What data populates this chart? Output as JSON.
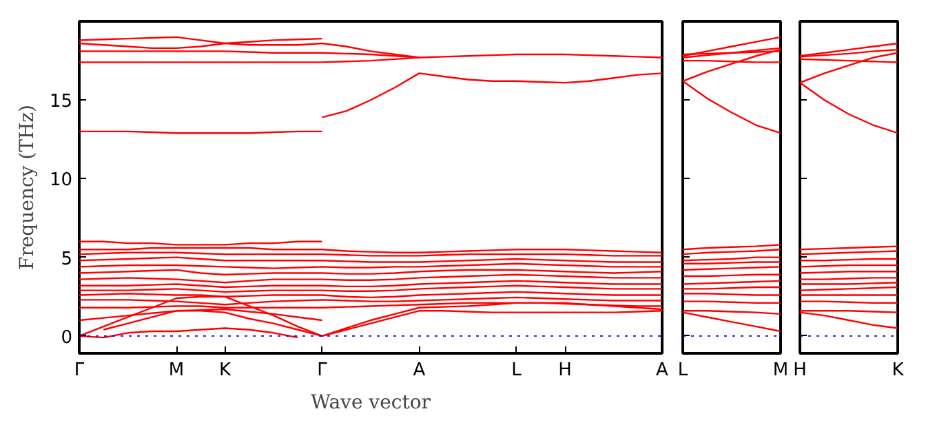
{
  "chart_data": [
    {
      "type": "line",
      "xlabel": "Wave vector",
      "ylabel": "Frequency (THz)",
      "ylim": [
        -1.1,
        20.0
      ],
      "yticks": [
        0,
        5,
        10,
        15
      ],
      "categories": [
        "Γ",
        null,
        null,
        null,
        "M",
        null,
        "K",
        null,
        null,
        null,
        "Γ",
        null,
        null,
        null,
        "A",
        null,
        null,
        null,
        "L",
        null,
        "H",
        null,
        null,
        null,
        "A"
      ],
      "grid": false,
      "line_style": "solid",
      "marker": "none",
      "ref_lines": [
        {
          "axis": "y",
          "value": 0,
          "color": "#0000ff",
          "line_style": "dotted"
        }
      ],
      "series": [
        {
          "color": "#ff0000",
          "values": [
            18.8,
            18.85,
            18.9,
            18.95,
            19.0,
            18.8,
            18.6,
            18.5,
            18.5,
            18.5,
            18.6,
            18.4,
            18.1,
            17.9,
            17.7,
            17.75,
            17.8,
            17.85,
            17.9,
            17.9,
            17.9,
            17.85,
            17.8,
            17.75,
            17.7
          ]
        },
        {
          "color": "#ff0000",
          "values": [
            18.6,
            18.5,
            18.4,
            18.3,
            18.3,
            18.4,
            18.6,
            18.7,
            18.8,
            18.85,
            18.9,
            null,
            null,
            null,
            null,
            null,
            null,
            null,
            null,
            null,
            null,
            null,
            null,
            null,
            null
          ]
        },
        {
          "color": "#ff0000",
          "values": [
            18.1,
            18.1,
            18.1,
            18.1,
            18.1,
            18.1,
            18.1,
            18.05,
            18.0,
            18.0,
            18.0,
            17.95,
            17.9,
            17.8,
            17.7,
            null,
            null,
            null,
            null,
            null,
            null,
            null,
            null,
            null,
            null
          ]
        },
        {
          "color": "#ff0000",
          "values": [
            17.4,
            17.4,
            17.4,
            17.4,
            17.4,
            17.4,
            17.4,
            17.4,
            17.4,
            17.4,
            17.4,
            17.45,
            17.5,
            17.6,
            17.7,
            null,
            null,
            null,
            null,
            null,
            null,
            null,
            null,
            null,
            null
          ]
        },
        {
          "color": "#ff0000",
          "values": [
            13.0,
            13.0,
            13.0,
            12.95,
            12.9,
            12.9,
            12.9,
            12.9,
            12.95,
            13.0,
            13.0,
            null,
            null,
            null,
            null,
            null,
            null,
            null,
            null,
            null,
            null,
            null,
            null,
            null,
            null
          ]
        },
        {
          "color": "#ff0000",
          "values": [
            null,
            null,
            null,
            null,
            null,
            null,
            null,
            null,
            null,
            null,
            13.9,
            14.3,
            15.0,
            15.8,
            16.7,
            16.5,
            16.3,
            16.2,
            16.2,
            16.15,
            16.1,
            16.2,
            16.4,
            16.6,
            16.7
          ]
        },
        {
          "color": "#ff0000",
          "values": [
            6.0,
            6.0,
            5.9,
            5.9,
            5.8,
            5.8,
            5.8,
            5.9,
            5.9,
            6.0,
            6.0,
            null,
            null,
            null,
            null,
            null,
            null,
            null,
            null,
            null,
            null,
            null,
            null,
            null,
            null
          ]
        },
        {
          "color": "#ff0000",
          "values": [
            5.5,
            5.5,
            5.5,
            5.6,
            5.6,
            5.6,
            5.6,
            5.6,
            5.5,
            5.5,
            5.5,
            5.4,
            5.35,
            5.3,
            5.3,
            5.35,
            5.4,
            5.45,
            5.5,
            5.5,
            5.5,
            5.45,
            5.4,
            5.35,
            5.3
          ]
        },
        {
          "color": "#ff0000",
          "values": [
            5.2,
            5.25,
            5.3,
            5.3,
            5.3,
            5.25,
            5.2,
            5.2,
            5.2,
            5.2,
            5.2,
            5.15,
            5.1,
            5.1,
            5.1,
            5.15,
            5.2,
            5.2,
            5.2,
            5.2,
            5.2,
            5.15,
            5.1,
            5.1,
            5.1
          ]
        },
        {
          "color": "#ff0000",
          "values": [
            4.8,
            4.85,
            4.9,
            4.95,
            5.0,
            4.9,
            4.8,
            4.8,
            4.8,
            4.8,
            4.8,
            4.75,
            4.7,
            4.7,
            4.7,
            4.75,
            4.8,
            4.85,
            4.9,
            4.85,
            4.8,
            4.75,
            4.7,
            4.7,
            4.7
          ]
        },
        {
          "color": "#ff0000",
          "values": [
            4.4,
            4.45,
            4.5,
            4.5,
            4.5,
            4.45,
            4.4,
            4.35,
            4.3,
            4.35,
            4.4,
            4.35,
            4.35,
            4.4,
            4.4,
            4.45,
            4.5,
            4.55,
            4.6,
            4.55,
            4.5,
            4.45,
            4.4,
            4.4,
            4.4
          ]
        },
        {
          "color": "#ff0000",
          "values": [
            4.0,
            4.05,
            4.1,
            4.15,
            4.2,
            4.0,
            3.9,
            3.95,
            4.0,
            4.0,
            4.0,
            3.95,
            3.95,
            4.0,
            4.1,
            4.15,
            4.2,
            4.2,
            4.2,
            4.15,
            4.1,
            4.05,
            4.0,
            4.05,
            4.1
          ]
        },
        {
          "color": "#ff0000",
          "values": [
            3.6,
            3.65,
            3.7,
            3.65,
            3.6,
            3.5,
            3.4,
            3.5,
            3.6,
            3.6,
            3.6,
            3.55,
            3.55,
            3.6,
            3.7,
            3.75,
            3.8,
            3.85,
            3.9,
            3.85,
            3.8,
            3.75,
            3.7,
            3.7,
            3.7
          ]
        },
        {
          "color": "#ff0000",
          "values": [
            3.2,
            3.2,
            3.2,
            3.25,
            3.3,
            3.2,
            3.1,
            3.15,
            3.2,
            3.2,
            3.2,
            3.15,
            3.15,
            3.2,
            3.3,
            3.35,
            3.4,
            3.45,
            3.5,
            3.45,
            3.4,
            3.35,
            3.3,
            3.3,
            3.3
          ]
        },
        {
          "color": "#ff0000",
          "values": [
            2.9,
            2.9,
            2.9,
            2.95,
            3.0,
            2.9,
            2.8,
            2.85,
            2.9,
            2.9,
            2.9,
            2.85,
            2.85,
            2.9,
            3.0,
            3.05,
            3.1,
            3.15,
            3.2,
            3.15,
            3.1,
            3.05,
            3.0,
            3.0,
            3.0
          ]
        },
        {
          "color": "#ff0000",
          "values": [
            2.6,
            2.65,
            2.7,
            2.65,
            2.6,
            2.6,
            2.5,
            2.55,
            2.6,
            2.6,
            2.6,
            2.5,
            2.45,
            2.5,
            2.6,
            2.65,
            2.7,
            2.75,
            2.8,
            2.75,
            2.7,
            2.65,
            2.6,
            2.6,
            2.6
          ]
        },
        {
          "color": "#ff0000",
          "values": [
            2.3,
            2.3,
            2.3,
            2.25,
            2.2,
            2.1,
            2.0,
            2.1,
            2.2,
            2.25,
            2.3,
            2.25,
            2.2,
            2.2,
            2.25,
            2.3,
            2.35,
            2.4,
            2.45,
            2.4,
            2.35,
            2.3,
            2.25,
            2.25,
            2.25
          ]
        },
        {
          "color": "#ff0000",
          "values": [
            1.8,
            1.8,
            1.8,
            1.85,
            1.9,
            1.9,
            1.8,
            1.8,
            1.8,
            1.8,
            1.8,
            1.85,
            1.9,
            1.95,
            2.0,
            2.05,
            2.1,
            2.1,
            2.1,
            2.1,
            2.05,
            2.0,
            1.95,
            1.9,
            1.9
          ]
        },
        {
          "color": "#ff0000",
          "values": [
            1.0,
            1.15,
            1.3,
            1.45,
            1.6,
            1.65,
            1.7,
            1.55,
            1.4,
            1.2,
            1.0,
            null,
            null,
            null,
            null,
            null,
            null,
            null,
            null,
            null,
            null,
            null,
            null,
            null,
            null
          ]
        },
        {
          "color": "#ff0000",
          "values": [
            0.0,
            0.6,
            1.2,
            1.8,
            2.4,
            2.5,
            2.5,
            1.9,
            1.3,
            0.6,
            0.0,
            0.4,
            0.8,
            1.2,
            1.6,
            1.6,
            1.55,
            1.5,
            1.5,
            1.5,
            1.5,
            1.5,
            1.5,
            1.55,
            1.6
          ]
        },
        {
          "color": "#ff0000",
          "values": [
            null,
            0.4,
            0.8,
            1.2,
            1.6,
            1.6,
            1.5,
            1.1,
            0.8,
            0.4,
            0.0,
            0.5,
            1.0,
            1.4,
            1.8,
            1.85,
            1.9,
            2.0,
            2.1,
            2.1,
            2.1,
            2.0,
            1.9,
            1.8,
            1.7
          ]
        },
        {
          "color": "#ff0000",
          "values": [
            0.0,
            -0.1,
            0.2,
            0.3,
            0.3,
            0.4,
            0.5,
            0.4,
            0.2,
            -0.1,
            null,
            null,
            null,
            null,
            null,
            null,
            null,
            null,
            null,
            null,
            null,
            null,
            null,
            null,
            null
          ]
        }
      ]
    },
    {
      "type": "line",
      "ylim": [
        -1.1,
        20.0
      ],
      "yticks": [
        0,
        5,
        10,
        15
      ],
      "tick_labels": "x",
      "categories": [
        "L",
        null,
        null,
        null,
        "M"
      ],
      "grid": false,
      "line_style": "solid",
      "marker": "none",
      "ref_lines": [
        {
          "axis": "y",
          "value": 0,
          "color": "#0000ff",
          "line_style": "dotted"
        }
      ],
      "series": [
        {
          "color": "#ff0000",
          "values": [
            17.8,
            18.1,
            18.4,
            18.7,
            19.0
          ]
        },
        {
          "color": "#ff0000",
          "values": [
            17.7,
            17.85,
            18.0,
            18.15,
            18.3
          ]
        },
        {
          "color": "#ff0000",
          "values": [
            17.9,
            17.95,
            18.0,
            18.05,
            18.1
          ]
        },
        {
          "color": "#ff0000",
          "values": [
            17.5,
            17.5,
            17.45,
            17.4,
            17.4
          ]
        },
        {
          "color": "#ff0000",
          "values": [
            16.2,
            16.8,
            17.3,
            17.8,
            18.2
          ]
        },
        {
          "color": "#ff0000",
          "values": [
            16.2,
            15.1,
            14.2,
            13.4,
            12.9
          ]
        },
        {
          "color": "#ff0000",
          "values": [
            5.5,
            5.6,
            5.65,
            5.7,
            5.8
          ]
        },
        {
          "color": "#ff0000",
          "values": [
            5.2,
            5.3,
            5.35,
            5.4,
            5.5
          ]
        },
        {
          "color": "#ff0000",
          "values": [
            4.8,
            4.85,
            4.9,
            5.0,
            5.0
          ]
        },
        {
          "color": "#ff0000",
          "values": [
            4.6,
            4.6,
            4.65,
            4.7,
            4.7
          ]
        },
        {
          "color": "#ff0000",
          "values": [
            4.2,
            4.25,
            4.3,
            4.35,
            4.4
          ]
        },
        {
          "color": "#ff0000",
          "values": [
            3.8,
            3.8,
            3.85,
            3.9,
            3.9
          ]
        },
        {
          "color": "#ff0000",
          "values": [
            3.3,
            3.35,
            3.4,
            3.45,
            3.5
          ]
        },
        {
          "color": "#ff0000",
          "values": [
            3.0,
            3.0,
            3.05,
            3.1,
            3.1
          ]
        },
        {
          "color": "#ff0000",
          "values": [
            2.7,
            2.7,
            2.65,
            2.6,
            2.6
          ]
        },
        {
          "color": "#ff0000",
          "values": [
            2.2,
            2.2,
            2.15,
            2.1,
            2.1
          ]
        },
        {
          "color": "#ff0000",
          "values": [
            1.6,
            1.6,
            1.55,
            1.5,
            1.4
          ]
        },
        {
          "color": "#ff0000",
          "values": [
            1.5,
            1.2,
            0.9,
            0.6,
            0.3
          ]
        }
      ]
    },
    {
      "type": "line",
      "ylim": [
        -1.1,
        20.0
      ],
      "yticks": [
        0,
        5,
        10,
        15
      ],
      "tick_labels": "x",
      "categories": [
        "H",
        null,
        null,
        null,
        "K"
      ],
      "grid": false,
      "line_style": "solid",
      "marker": "none",
      "ref_lines": [
        {
          "axis": "y",
          "value": 0,
          "color": "#0000ff",
          "line_style": "dotted"
        }
      ],
      "series": [
        {
          "color": "#ff0000",
          "values": [
            17.8,
            18.0,
            18.2,
            18.4,
            18.6
          ]
        },
        {
          "color": "#ff0000",
          "values": [
            17.75,
            17.85,
            17.95,
            18.1,
            18.2
          ]
        },
        {
          "color": "#ff0000",
          "values": [
            17.6,
            17.55,
            17.5,
            17.45,
            17.4
          ]
        },
        {
          "color": "#ff0000",
          "values": [
            16.1,
            16.7,
            17.2,
            17.7,
            18.0
          ]
        },
        {
          "color": "#ff0000",
          "values": [
            16.1,
            15.0,
            14.1,
            13.4,
            12.9
          ]
        },
        {
          "color": "#ff0000",
          "values": [
            5.5,
            5.55,
            5.6,
            5.65,
            5.7
          ]
        },
        {
          "color": "#ff0000",
          "values": [
            5.2,
            5.25,
            5.3,
            5.35,
            5.4
          ]
        },
        {
          "color": "#ff0000",
          "values": [
            4.8,
            4.8,
            4.85,
            4.9,
            4.9
          ]
        },
        {
          "color": "#ff0000",
          "values": [
            4.4,
            4.45,
            4.5,
            4.5,
            4.5
          ]
        },
        {
          "color": "#ff0000",
          "values": [
            4.0,
            4.05,
            4.1,
            4.1,
            4.1
          ]
        },
        {
          "color": "#ff0000",
          "values": [
            3.6,
            3.6,
            3.65,
            3.7,
            3.7
          ]
        },
        {
          "color": "#ff0000",
          "values": [
            3.3,
            3.3,
            3.3,
            3.35,
            3.4
          ]
        },
        {
          "color": "#ff0000",
          "values": [
            2.9,
            2.95,
            3.0,
            3.05,
            3.1
          ]
        },
        {
          "color": "#ff0000",
          "values": [
            2.6,
            2.6,
            2.6,
            2.6,
            2.6
          ]
        },
        {
          "color": "#ff0000",
          "values": [
            2.2,
            2.2,
            2.15,
            2.1,
            2.1
          ]
        },
        {
          "color": "#ff0000",
          "values": [
            1.6,
            1.6,
            1.6,
            1.55,
            1.5
          ]
        },
        {
          "color": "#ff0000",
          "values": [
            1.5,
            1.3,
            1.0,
            0.7,
            0.5
          ]
        }
      ]
    }
  ]
}
